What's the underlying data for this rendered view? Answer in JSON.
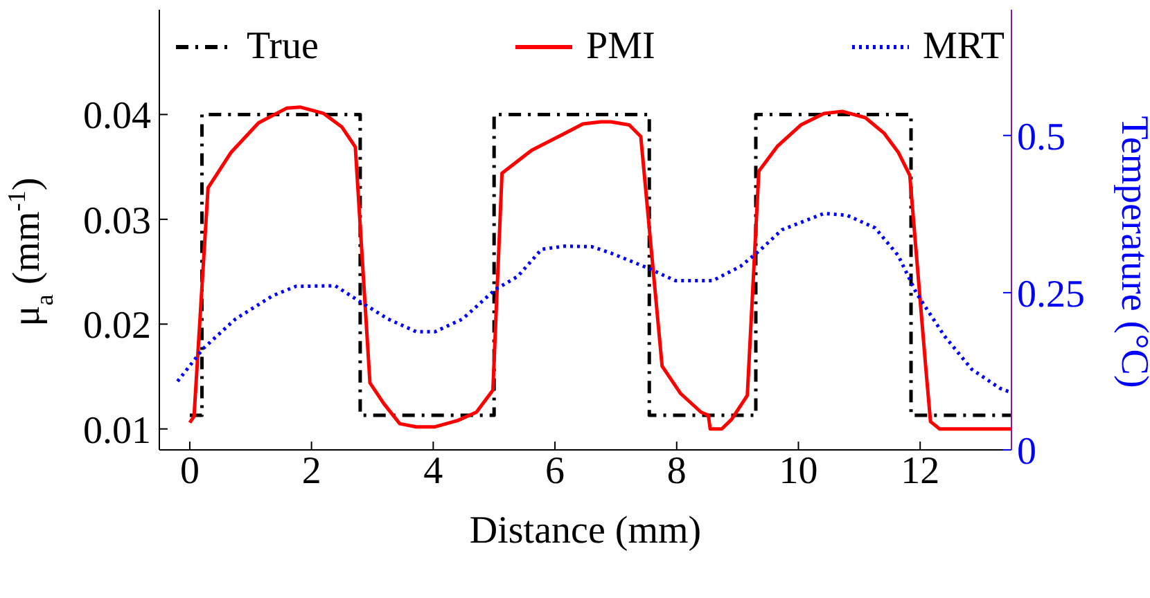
{
  "chart_data": {
    "type": "line",
    "xlabel": "Distance (mm)",
    "ylabel": "μ$_{a}$ (mm$^{-1}$)",
    "y2label": "Temperature (°C)",
    "xlim": [
      -0.5,
      13.5
    ],
    "xticks": [
      0,
      2,
      4,
      6,
      8,
      10,
      12
    ],
    "ylim": [
      0.008,
      0.05
    ],
    "yticks": [
      0.01,
      0.02,
      0.03,
      0.04
    ],
    "y2lim": [
      0,
      0.7
    ],
    "y2ticks": [
      0,
      0.25,
      0.5
    ],
    "legend": "top",
    "series": [
      {
        "name": "True",
        "color": "#000000",
        "line_style": "dashed",
        "x": [
          0,
          0.2,
          0.2,
          2.8,
          2.8,
          5.0,
          5.0,
          7.55,
          7.55,
          9.3,
          9.3,
          11.85,
          11.85,
          13.5
        ],
        "values": [
          0.0113,
          0.0113,
          0.04,
          0.04,
          0.0113,
          0.0113,
          0.04,
          0.04,
          0.0113,
          0.0113,
          0.04,
          0.04,
          0.0113,
          0.0113
        ]
      },
      {
        "name": "PMI",
        "color": "#ff0000",
        "line_style": "solid",
        "x": [
          0,
          0.07,
          0.3,
          0.68,
          1.13,
          1.59,
          1.82,
          2.2,
          2.5,
          2.72,
          2.96,
          3.19,
          3.45,
          3.72,
          4.03,
          4.4,
          4.71,
          4.98,
          5.13,
          5.62,
          6.16,
          6.46,
          6.76,
          6.92,
          7.22,
          7.41,
          7.76,
          8.06,
          8.4,
          8.52,
          8.55,
          8.74,
          8.9,
          9.16,
          9.35,
          9.66,
          10.04,
          10.42,
          10.72,
          11.1,
          11.41,
          11.64,
          11.83,
          12.09,
          12.17,
          12.32,
          13.5
        ],
        "values": [
          0.0106,
          0.0112,
          0.033,
          0.0364,
          0.0392,
          0.0406,
          0.0407,
          0.0401,
          0.0388,
          0.0369,
          0.0144,
          0.0124,
          0.0105,
          0.0102,
          0.0102,
          0.0108,
          0.0116,
          0.0137,
          0.0344,
          0.0366,
          0.0382,
          0.0391,
          0.0393,
          0.0393,
          0.039,
          0.0379,
          0.016,
          0.0134,
          0.0116,
          0.0113,
          0.01,
          0.01,
          0.0109,
          0.0132,
          0.0346,
          0.037,
          0.039,
          0.0401,
          0.0403,
          0.0397,
          0.0382,
          0.0364,
          0.0342,
          0.016,
          0.0107,
          0.01,
          0.01
        ]
      },
      {
        "name": "MRT",
        "color": "#0000ff",
        "line_style": "dotted",
        "axis": "y2",
        "x": [
          -0.2,
          0.22,
          0.75,
          1.36,
          1.74,
          2.39,
          2.81,
          3.26,
          3.72,
          4.03,
          4.48,
          5.02,
          5.39,
          5.78,
          6.16,
          6.61,
          6.92,
          7.53,
          7.98,
          8.59,
          9.05,
          9.35,
          9.73,
          10.42,
          10.8,
          11.26,
          11.64,
          11.94,
          12.4,
          12.85,
          13.31,
          13.5
        ],
        "values": [
          0.109,
          0.161,
          0.208,
          0.245,
          0.26,
          0.261,
          0.235,
          0.208,
          0.188,
          0.188,
          0.208,
          0.255,
          0.276,
          0.319,
          0.324,
          0.323,
          0.313,
          0.289,
          0.269,
          0.269,
          0.292,
          0.316,
          0.35,
          0.376,
          0.373,
          0.353,
          0.309,
          0.249,
          0.181,
          0.128,
          0.098,
          0.091
        ]
      }
    ]
  }
}
